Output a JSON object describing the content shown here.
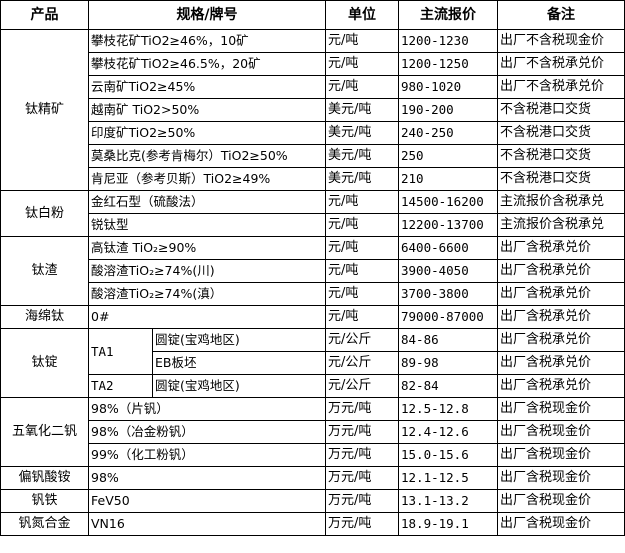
{
  "headers": {
    "product": "产品",
    "spec": "规格/牌号",
    "unit": "单位",
    "price": "主流报价",
    "note": "备注"
  },
  "groups": [
    {
      "product": "钛精矿",
      "rows": [
        {
          "spec": "攀枝花矿TiO2≥46%，10矿",
          "unit": "元/吨",
          "price": "1200-1230",
          "note": "出厂不含税现金价"
        },
        {
          "spec": "攀枝花矿TiO2≥46.5%，20矿",
          "unit": "元/吨",
          "price": "1200-1250",
          "note": "出厂不含税承兑价"
        },
        {
          "spec": "云南矿TiO2≥45%",
          "unit": "元/吨",
          "price": "980-1020",
          "note": "出厂不含税承兑价"
        },
        {
          "spec": "越南矿 TiO2>50%",
          "unit": "美元/吨",
          "price": "190-200",
          "note": "不含税港口交货"
        },
        {
          "spec": "印度矿TiO2≥50%",
          "unit": "美元/吨",
          "price": "240-250",
          "note": "不含税港口交货"
        },
        {
          "spec": "莫桑比克(参考肯梅尔）TiO2≥50%",
          "unit": "美元/吨",
          "price": "250",
          "note": "不含税港口交货"
        },
        {
          "spec": "肯尼亚（参考贝斯）TiO2≥49%",
          "unit": "美元/吨",
          "price": "210",
          "note": "不含税港口交货"
        }
      ]
    },
    {
      "product": "钛白粉",
      "rows": [
        {
          "spec": "金红石型（硫酸法）",
          "unit": "元/吨",
          "price": "14500-16200",
          "note": "主流报价含税承兑"
        },
        {
          "spec": "锐钛型",
          "unit": "元/吨",
          "price": "12200-13700",
          "note": "主流报价含税承兑"
        }
      ]
    },
    {
      "product": "钛渣",
      "rows": [
        {
          "spec": "高钛渣 TiO₂≥90%",
          "unit": "元/吨",
          "price": "6400-6600",
          "note": "出厂含税承兑价"
        },
        {
          "spec": "酸溶渣TiO₂≥74%(川)",
          "unit": "元/吨",
          "price": "3900-4050",
          "note": "出厂含税承兑价"
        },
        {
          "spec": "酸溶渣TiO₂≥74%(滇）",
          "unit": "元/吨",
          "price": "3700-3800",
          "note": "出厂含税承兑价"
        }
      ]
    },
    {
      "product": "海绵钛",
      "rows": [
        {
          "spec": "0#",
          "unit": "元/吨",
          "price": "79000-87000",
          "note": "出厂含税承兑价"
        }
      ]
    }
  ],
  "ingot": {
    "product": "钛锭",
    "rows": [
      {
        "grade": "TA1",
        "spec": "圆锭(宝鸡地区)",
        "unit": "元/公斤",
        "price": "84-86",
        "note": "出厂含税承兑价"
      },
      {
        "grade": "",
        "spec": "EB板坯",
        "unit": "元/公斤",
        "price": "89-98",
        "note": "出厂含税承兑价"
      },
      {
        "grade": "TA2",
        "spec": "圆锭(宝鸡地区)",
        "unit": "元/公斤",
        "price": "82-84",
        "note": "出厂含税承兑价"
      }
    ]
  },
  "groups2": [
    {
      "product": "五氧化二钒",
      "rows": [
        {
          "spec": "98%（片钒）",
          "unit": "万元/吨",
          "price": "12.5-12.8",
          "note": "出厂含税现金价"
        },
        {
          "spec": "98%（冶金粉钒）",
          "unit": "万元/吨",
          "price": "12.4-12.6",
          "note": "出厂含税现金价"
        },
        {
          "spec": "99%（化工粉钒）",
          "unit": "万元/吨",
          "price": "15.0-15.6",
          "note": "出厂含税现金价"
        }
      ]
    },
    {
      "product": "偏钒酸铵",
      "rows": [
        {
          "spec": "98%",
          "unit": "万元/吨",
          "price": "12.1-12.5",
          "note": "出厂含税现金价"
        }
      ]
    },
    {
      "product": "钒铁",
      "rows": [
        {
          "spec": "FeV50",
          "unit": "万元/吨",
          "price": "13.1-13.2",
          "note": "出厂含税现金价"
        }
      ]
    },
    {
      "product": "钒氮合金",
      "rows": [
        {
          "spec": "VN16",
          "unit": "万元/吨",
          "price": "18.9-19.1",
          "note": "出厂含税现金价"
        }
      ]
    }
  ]
}
